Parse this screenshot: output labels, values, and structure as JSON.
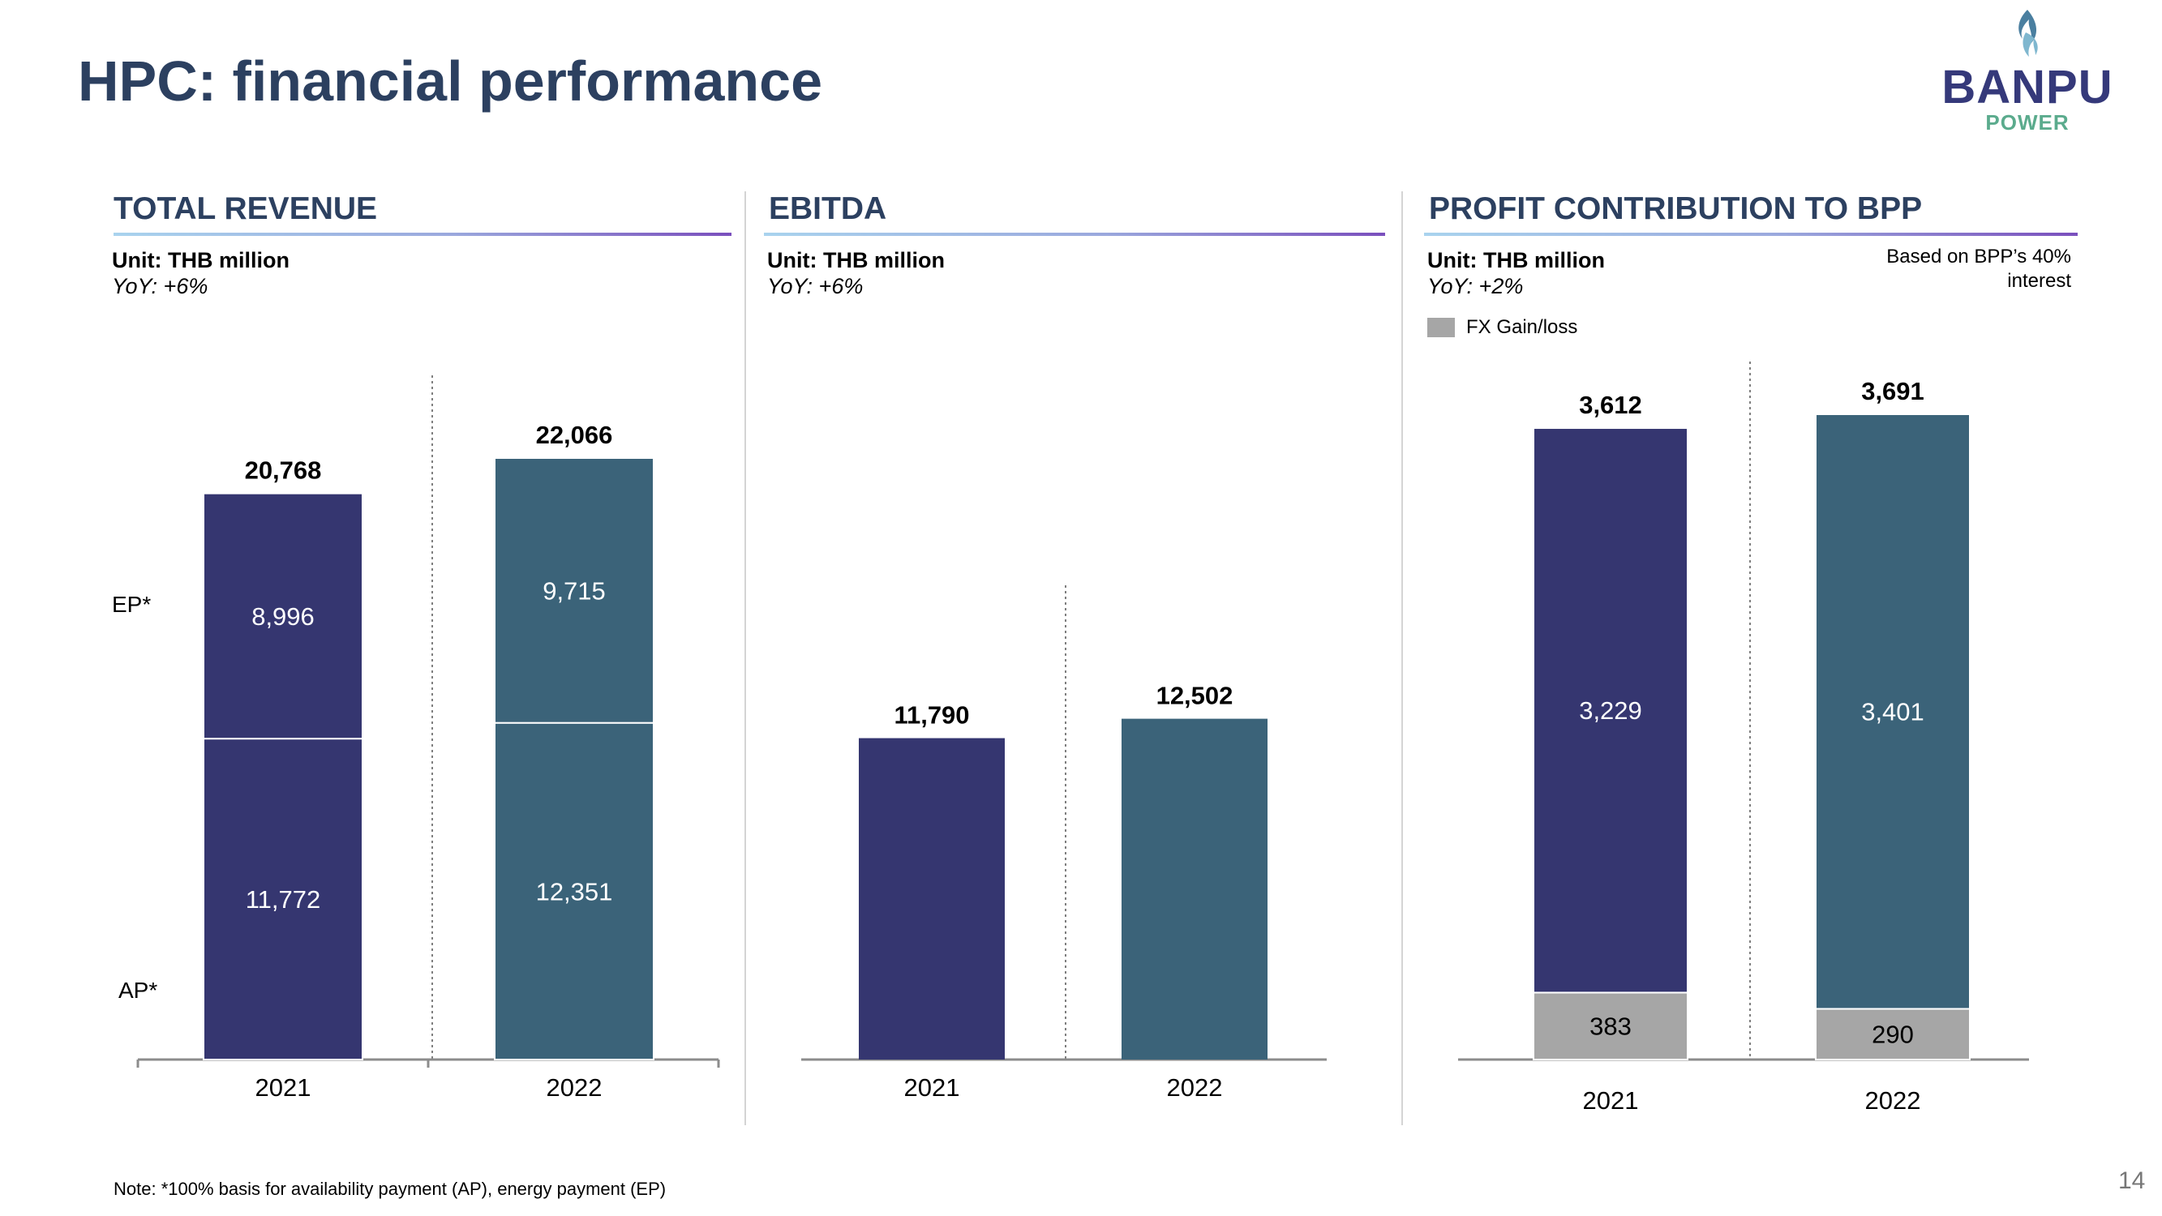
{
  "page": {
    "title": "HPC: financial performance",
    "logo_main": "BANPU",
    "logo_sub": "POWER",
    "footnote": "Note: *100% basis for availability payment (AP), energy payment (EP)",
    "page_number": "14"
  },
  "panels": [
    {
      "heading": "TOTAL REVENUE",
      "unit": "Unit: THB million",
      "yoy": "YoY: +6%",
      "segment_labels": {
        "top": "EP*",
        "bottom": "AP*"
      }
    },
    {
      "heading": "EBITDA",
      "unit": "Unit: THB million",
      "yoy": "YoY: +6%"
    },
    {
      "heading": "PROFIT CONTRIBUTION TO BPP",
      "unit": "Unit: THB million",
      "yoy": "YoY: +2%",
      "note_line1": "Based on BPP’s 40%",
      "note_line2": "interest",
      "legend_label": "FX Gain/loss"
    }
  ],
  "colors": {
    "y2021": "#353670",
    "y2022": "#3b6379",
    "fx": "#a6a6a6",
    "title": "#2c4060"
  },
  "chart_data": [
    {
      "type": "bar",
      "stacked": true,
      "title": "TOTAL REVENUE",
      "categories": [
        "2021",
        "2022"
      ],
      "series": [
        {
          "name": "AP*",
          "values": [
            11772,
            12351
          ]
        },
        {
          "name": "EP*",
          "values": [
            8996,
            9715
          ]
        }
      ],
      "totals": [
        20768,
        22066
      ],
      "total_labels": [
        "20,768",
        "22,066"
      ],
      "segment_labels": [
        [
          "11,772",
          "8,996"
        ],
        [
          "12,351",
          "9,715"
        ]
      ],
      "ylim": [
        0,
        25000
      ]
    },
    {
      "type": "bar",
      "stacked": false,
      "title": "EBITDA",
      "categories": [
        "2021",
        "2022"
      ],
      "values": [
        11790,
        12502
      ],
      "total_labels": [
        "11,790",
        "12,502"
      ],
      "ylim": [
        0,
        25000
      ]
    },
    {
      "type": "bar",
      "stacked": true,
      "title": "PROFIT CONTRIBUTION TO BPP",
      "categories": [
        "2021",
        "2022"
      ],
      "series": [
        {
          "name": "FX Gain/loss",
          "values": [
            383,
            290
          ]
        },
        {
          "values": [
            3229,
            3401
          ]
        }
      ],
      "totals": [
        3612,
        3691
      ],
      "total_labels": [
        "3,612",
        "3,691"
      ],
      "segment_labels": [
        [
          "383",
          "3,229"
        ],
        [
          "290",
          "3,401"
        ]
      ],
      "ylim": [
        0,
        4000
      ]
    }
  ]
}
